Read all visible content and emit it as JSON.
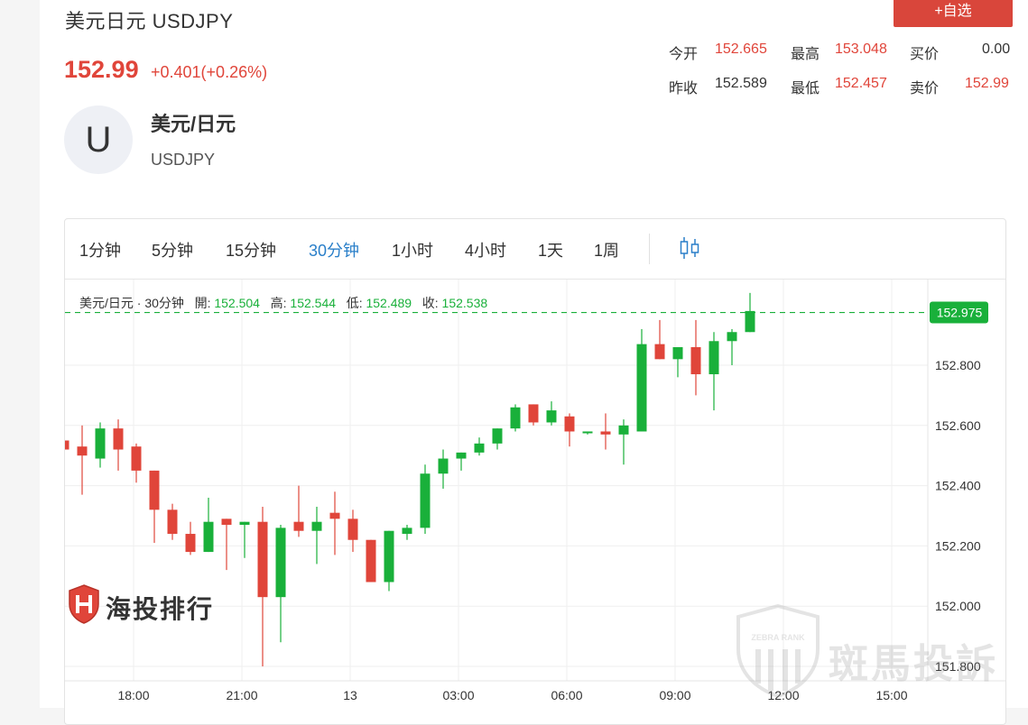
{
  "header": {
    "title": "美元日元 USDJPY",
    "add_button": "+自选",
    "price": "152.99",
    "change": "+0.401(+0.26%)"
  },
  "stats": {
    "open_label": "今开",
    "open_value": "152.665",
    "high_label": "最高",
    "high_value": "153.048",
    "buy_label": "买价",
    "buy_value": "0.00",
    "prev_close_label": "昨收",
    "prev_close_value": "152.589",
    "low_label": "最低",
    "low_value": "152.457",
    "sell_label": "卖价",
    "sell_value": "152.99"
  },
  "instrument": {
    "avatar_letter": "U",
    "name": "美元/日元",
    "code": "USDJPY"
  },
  "toolbar": {
    "intervals": [
      "1分钟",
      "5分钟",
      "15分钟",
      "30分钟",
      "1小时",
      "4小时",
      "1天",
      "1周"
    ],
    "active": "30分钟",
    "chart_type_icon": "candlestick-icon"
  },
  "legend": {
    "symbol": "美元/日元 · 30分钟",
    "open_label": "開:",
    "open": "152.504",
    "high_label": "高:",
    "high": "152.544",
    "low_label": "低:",
    "low": "152.489",
    "close_label": "收:",
    "close": "152.538"
  },
  "watermarks": {
    "logo_text": "海投排行",
    "badge_text": "ZEBRA RANK",
    "brand_text": "斑馬投訴"
  },
  "colors": {
    "up": "#19b03a",
    "down": "#e0453a",
    "accent": "#2a7fc9",
    "button": "#d9463b"
  },
  "chart_data": {
    "type": "candlestick",
    "interval": "30分钟",
    "y_ticks": [
      "152.800",
      "152.600",
      "152.400",
      "152.200",
      "152.000",
      "151.800"
    ],
    "x_ticks": [
      "18:00",
      "21:00",
      "13",
      "03:00",
      "06:00",
      "09:00",
      "12:00",
      "15:00"
    ],
    "last_price": "152.975",
    "ylim": [
      151.77,
      153.08
    ],
    "candles": [
      {
        "o": 152.55,
        "h": 152.55,
        "l": 152.52,
        "c": 152.52
      },
      {
        "o": 152.53,
        "h": 152.6,
        "l": 152.37,
        "c": 152.5
      },
      {
        "o": 152.49,
        "h": 152.61,
        "l": 152.46,
        "c": 152.59
      },
      {
        "o": 152.59,
        "h": 152.62,
        "l": 152.45,
        "c": 152.52
      },
      {
        "o": 152.53,
        "h": 152.54,
        "l": 152.41,
        "c": 152.45
      },
      {
        "o": 152.45,
        "h": 152.45,
        "l": 152.21,
        "c": 152.32
      },
      {
        "o": 152.32,
        "h": 152.34,
        "l": 152.22,
        "c": 152.24
      },
      {
        "o": 152.24,
        "h": 152.28,
        "l": 152.17,
        "c": 152.18
      },
      {
        "o": 152.18,
        "h": 152.36,
        "l": 152.18,
        "c": 152.28
      },
      {
        "o": 152.29,
        "h": 152.29,
        "l": 152.12,
        "c": 152.27
      },
      {
        "o": 152.27,
        "h": 152.28,
        "l": 152.16,
        "c": 152.28
      },
      {
        "o": 152.28,
        "h": 152.33,
        "l": 151.8,
        "c": 152.03
      },
      {
        "o": 152.03,
        "h": 152.27,
        "l": 151.88,
        "c": 152.26
      },
      {
        "o": 152.28,
        "h": 152.4,
        "l": 152.23,
        "c": 152.25
      },
      {
        "o": 152.25,
        "h": 152.33,
        "l": 152.14,
        "c": 152.28
      },
      {
        "o": 152.31,
        "h": 152.38,
        "l": 152.17,
        "c": 152.29
      },
      {
        "o": 152.29,
        "h": 152.32,
        "l": 152.18,
        "c": 152.22
      },
      {
        "o": 152.22,
        "h": 152.22,
        "l": 152.08,
        "c": 152.08
      },
      {
        "o": 152.08,
        "h": 152.25,
        "l": 152.05,
        "c": 152.25
      },
      {
        "o": 152.24,
        "h": 152.27,
        "l": 152.22,
        "c": 152.26
      },
      {
        "o": 152.26,
        "h": 152.47,
        "l": 152.24,
        "c": 152.44
      },
      {
        "o": 152.44,
        "h": 152.52,
        "l": 152.39,
        "c": 152.49
      },
      {
        "o": 152.49,
        "h": 152.51,
        "l": 152.45,
        "c": 152.51
      },
      {
        "o": 152.51,
        "h": 152.56,
        "l": 152.5,
        "c": 152.54
      },
      {
        "o": 152.54,
        "h": 152.59,
        "l": 152.52,
        "c": 152.59
      },
      {
        "o": 152.59,
        "h": 152.67,
        "l": 152.58,
        "c": 152.66
      },
      {
        "o": 152.67,
        "h": 152.67,
        "l": 152.6,
        "c": 152.61
      },
      {
        "o": 152.61,
        "h": 152.68,
        "l": 152.6,
        "c": 152.65
      },
      {
        "o": 152.63,
        "h": 152.64,
        "l": 152.53,
        "c": 152.58
      },
      {
        "o": 152.58,
        "h": 152.58,
        "l": 152.57,
        "c": 152.58
      },
      {
        "o": 152.58,
        "h": 152.64,
        "l": 152.52,
        "c": 152.57
      },
      {
        "o": 152.57,
        "h": 152.62,
        "l": 152.47,
        "c": 152.6
      },
      {
        "o": 152.58,
        "h": 152.92,
        "l": 152.58,
        "c": 152.87
      },
      {
        "o": 152.87,
        "h": 152.95,
        "l": 152.82,
        "c": 152.82
      },
      {
        "o": 152.82,
        "h": 152.86,
        "l": 152.76,
        "c": 152.86
      },
      {
        "o": 152.86,
        "h": 152.95,
        "l": 152.7,
        "c": 152.77
      },
      {
        "o": 152.77,
        "h": 152.91,
        "l": 152.65,
        "c": 152.88
      },
      {
        "o": 152.88,
        "h": 152.92,
        "l": 152.8,
        "c": 152.91
      },
      {
        "o": 152.91,
        "h": 153.04,
        "l": 152.91,
        "c": 152.98
      }
    ]
  }
}
